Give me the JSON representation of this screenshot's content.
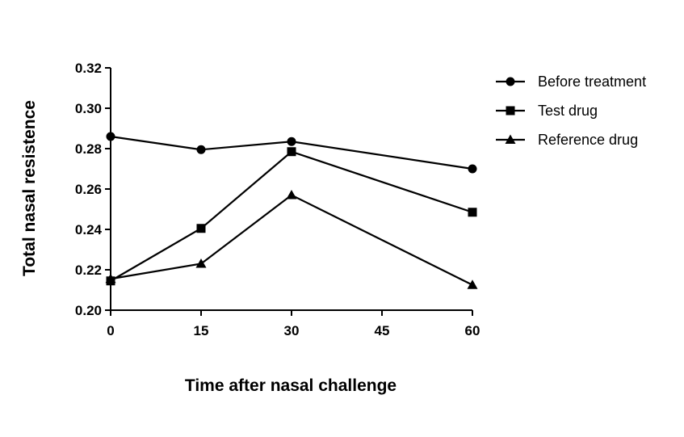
{
  "chart_data": {
    "type": "line",
    "title": "",
    "xlabel": "Time after nasal challenge",
    "ylabel": "Total nasal resistence",
    "xlim": [
      0,
      60
    ],
    "ylim": [
      0.2,
      0.32
    ],
    "xticks": [
      0,
      15,
      30,
      45,
      60
    ],
    "xtick_labels": [
      "0",
      "15",
      "30",
      "45",
      "60"
    ],
    "yticks": [
      0.2,
      0.22,
      0.24,
      0.26,
      0.28,
      0.3,
      0.32
    ],
    "ytick_labels": [
      "0.20",
      "0.22",
      "0.24",
      "0.26",
      "0.28",
      "0.30",
      "0.32"
    ],
    "x": [
      0,
      15,
      30,
      60
    ],
    "grid": false,
    "legend_position": "top-right",
    "series": [
      {
        "name": "Before treatment",
        "marker": "circle",
        "values": [
          0.286,
          0.2795,
          0.2835,
          0.27
        ]
      },
      {
        "name": "Test drug",
        "marker": "square",
        "values": [
          0.2145,
          0.2405,
          0.2785,
          0.2485
        ]
      },
      {
        "name": "Reference drug",
        "marker": "triangle",
        "values": [
          0.2155,
          0.223,
          0.257,
          0.2125
        ]
      }
    ],
    "colors": {
      "line": "#000000",
      "background": "#ffffff"
    }
  }
}
